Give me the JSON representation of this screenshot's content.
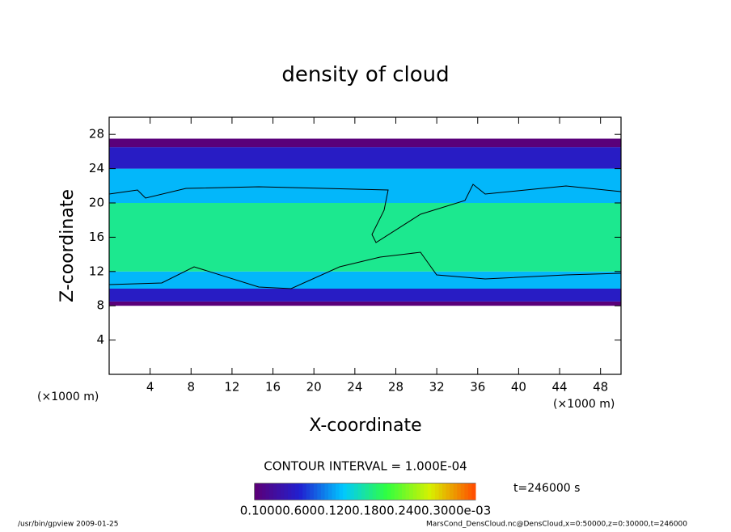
{
  "chart_data": {
    "type": "banded-field",
    "title": "density of cloud",
    "x_label": "X-coordinate",
    "y_label": "Z-coordinate",
    "x_unit": "(×1000 m)",
    "y_unit": "(×1000 m)",
    "xlim": [
      0,
      50
    ],
    "xticks": [
      4,
      8,
      12,
      16,
      20,
      24,
      28,
      32,
      36,
      40,
      44,
      48
    ],
    "ylim": [
      0,
      30
    ],
    "yticks": [
      4,
      8,
      12,
      16,
      20,
      24,
      28
    ],
    "z_edges": [
      8,
      8.5,
      10,
      12,
      20,
      24,
      26.5,
      27.5
    ],
    "values": [
      0.1,
      0.6,
      1.2,
      1.6,
      1.2,
      0.6,
      0.1
    ],
    "colorbar_range": [
      0.1,
      3.0
    ],
    "colors": [
      "#5a007a",
      "#2020d0",
      "#00c8ff",
      "#30ff40",
      "#d8f000",
      "#ff5000"
    ],
    "contour_interval": "CONTOUR INTERVAL = 1.000E-04",
    "colorbar_labels": "0.10000.6000.1200.1800.2400.3000e-03",
    "time_label": "t=246000 s",
    "footer_left": "/usr/bin/gpview  2009-01-25",
    "footer_right": "MarsCond_DensCloud.nc@DensCloud,x=0:50000,z=0:30000,t=246000"
  }
}
